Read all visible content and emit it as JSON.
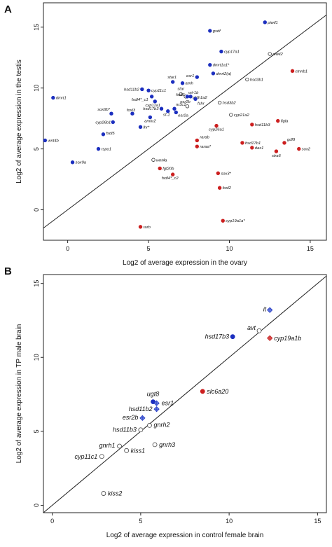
{
  "panels": [
    {
      "letter": "A"
    },
    {
      "letter": "B"
    }
  ],
  "chart_data": [
    {
      "type": "scatter",
      "panel": "A",
      "title": "",
      "xlabel": "Log2 of average expression in the ovary",
      "ylabel": "Log2 of average expression in the testis",
      "xlim": [
        -1.5,
        16
      ],
      "ylim": [
        -2.5,
        17
      ],
      "xticks": [
        0,
        5,
        10,
        15
      ],
      "yticks": [
        0,
        5,
        10,
        15
      ],
      "grid": false,
      "diagonal": true,
      "colors": {
        "testis": "#1c2fbf",
        "ovary": "#cc1f1f",
        "neutral": "#ffffff"
      },
      "points": [
        {
          "label": "piwil1",
          "x": 12.2,
          "y": 15.4,
          "group": "testis"
        },
        {
          "label": "gsdf",
          "x": 8.8,
          "y": 14.7,
          "group": "testis"
        },
        {
          "label": "cyp17a1",
          "x": 9.5,
          "y": 13.0,
          "group": "testis"
        },
        {
          "label": "piwil2",
          "x": 12.5,
          "y": 12.8,
          "group": "neutral"
        },
        {
          "label": "dmrt1a1*",
          "x": 8.8,
          "y": 11.9,
          "group": "testis"
        },
        {
          "label": "ctnnb1",
          "x": 13.9,
          "y": 11.4,
          "group": "ovary"
        },
        {
          "label": "dmrt2(a)",
          "x": 9.0,
          "y": 11.2,
          "group": "testis"
        },
        {
          "label": "esr1",
          "x": 8.0,
          "y": 10.9,
          "group": "testis"
        },
        {
          "label": "hsd3b1",
          "x": 11.1,
          "y": 10.7,
          "group": "neutral"
        },
        {
          "label": "star1",
          "x": 6.5,
          "y": 10.5,
          "group": "testis"
        },
        {
          "label": "amh",
          "x": 7.1,
          "y": 10.4,
          "group": "testis"
        },
        {
          "label": "hsd11b2",
          "x": 4.6,
          "y": 9.9,
          "group": "testis"
        },
        {
          "label": "cyp11c1",
          "x": 5.0,
          "y": 9.8,
          "group": "testis"
        },
        {
          "label": "dmrt1",
          "x": -0.9,
          "y": 9.2,
          "group": "testis"
        },
        {
          "label": "fsdl4*_c1",
          "x": 5.2,
          "y": 9.3,
          "group": "testis"
        },
        {
          "label": "star",
          "x": 7.0,
          "y": 9.5,
          "group": "neutral"
        },
        {
          "label": "wt-1b",
          "x": 7.3,
          "y": 9.3,
          "group": "neutral"
        },
        {
          "label": "fsdl3",
          "x": 7.4,
          "y": 9.3,
          "group": "testis"
        },
        {
          "label": "aldh1a2",
          "x": 7.6,
          "y": 9.3,
          "group": "testis"
        },
        {
          "label": "fshr",
          "x": 7.9,
          "y": 9.1,
          "group": "testis"
        },
        {
          "label": "cyp11a1",
          "x": 5.4,
          "y": 8.9,
          "group": "testis"
        },
        {
          "label": "hsd3b2",
          "x": 9.4,
          "y": 8.8,
          "group": "neutral"
        },
        {
          "label": "esr2b",
          "x": 7.4,
          "y": 8.5,
          "group": "neutral"
        },
        {
          "label": "nr3c1",
          "x": 6.6,
          "y": 8.3,
          "group": "testis"
        },
        {
          "label": "hsd17b3",
          "x": 5.8,
          "y": 8.3,
          "group": "testis"
        },
        {
          "label": "sf-1",
          "x": 6.2,
          "y": 8.1,
          "group": "testis"
        },
        {
          "label": "esr2a",
          "x": 6.7,
          "y": 8.0,
          "group": "testis"
        },
        {
          "label": "sox9b*",
          "x": 2.7,
          "y": 7.9,
          "group": "testis"
        },
        {
          "label": "foxl3",
          "x": 4.0,
          "y": 7.9,
          "group": "testis"
        },
        {
          "label": "amhr2",
          "x": 5.1,
          "y": 7.6,
          "group": "testis"
        },
        {
          "label": "cyp21a2",
          "x": 10.1,
          "y": 7.8,
          "group": "neutral"
        },
        {
          "label": "cyp26b1",
          "x": 2.8,
          "y": 7.2,
          "group": "testis"
        },
        {
          "label": "hsd11b3",
          "x": 11.4,
          "y": 7.0,
          "group": "ovary"
        },
        {
          "label": "cyp26a1",
          "x": 9.2,
          "y": 6.9,
          "group": "ovary"
        },
        {
          "label": "lhr*",
          "x": 4.5,
          "y": 6.8,
          "group": "testis"
        },
        {
          "label": "figla",
          "x": 13.0,
          "y": 7.3,
          "group": "ovary"
        },
        {
          "label": "fsdl5",
          "x": 2.2,
          "y": 6.2,
          "group": "testis"
        },
        {
          "label": "wnt4b",
          "x": -1.4,
          "y": 5.7,
          "group": "testis"
        },
        {
          "label": "rarab",
          "x": 8.0,
          "y": 5.7,
          "group": "ovary"
        },
        {
          "label": "raraa*",
          "x": 8.0,
          "y": 5.2,
          "group": "ovary"
        },
        {
          "label": "hsd17b1",
          "x": 10.8,
          "y": 5.5,
          "group": "ovary"
        },
        {
          "label": "gdf9",
          "x": 13.4,
          "y": 5.5,
          "group": "ovary"
        },
        {
          "label": "dax1",
          "x": 11.4,
          "y": 5.1,
          "group": "ovary"
        },
        {
          "label": "sox2",
          "x": 14.3,
          "y": 5.0,
          "group": "ovary"
        },
        {
          "label": "stra6",
          "x": 12.9,
          "y": 4.8,
          "group": "ovary"
        },
        {
          "label": "rspo1",
          "x": 1.9,
          "y": 5.0,
          "group": "testis"
        },
        {
          "label": "wnt4a",
          "x": 5.3,
          "y": 4.1,
          "group": "neutral"
        },
        {
          "label": "sox9a",
          "x": 0.3,
          "y": 3.9,
          "group": "testis"
        },
        {
          "label": "fgf20b",
          "x": 5.7,
          "y": 3.4,
          "group": "ovary"
        },
        {
          "label": "sox3*",
          "x": 9.3,
          "y": 3.0,
          "group": "ovary"
        },
        {
          "label": "fsdl4*_c2",
          "x": 6.5,
          "y": 2.9,
          "group": "ovary"
        },
        {
          "label": "foxl2",
          "x": 9.4,
          "y": 1.8,
          "group": "ovary"
        },
        {
          "label": "cyp19a1a*",
          "x": 9.6,
          "y": -0.9,
          "group": "ovary"
        },
        {
          "label": "rarb",
          "x": 4.5,
          "y": -1.4,
          "group": "ovary"
        }
      ]
    },
    {
      "type": "scatter",
      "panel": "B",
      "title": "",
      "xlabel": "Log2 of average expression in control female brain",
      "ylabel": "Log2 of average expression in TP male brain",
      "xlim": [
        -0.5,
        15.5
      ],
      "ylim": [
        -0.5,
        15.6
      ],
      "xticks": [
        0,
        5,
        10,
        15
      ],
      "yticks": [
        0,
        5,
        10,
        15
      ],
      "grid": false,
      "diagonal": true,
      "colors": {
        "filled_blue": "#1c2fbf",
        "filled_red": "#cc1f1f",
        "diamond_blue": "#6f84e3",
        "diamond_red": "#e05555",
        "open": "#ffffff"
      },
      "points": [
        {
          "label": "it",
          "x": 12.3,
          "y": 13.2,
          "style": "diamond_blue"
        },
        {
          "label": "avt",
          "x": 11.7,
          "y": 11.8,
          "style": "open"
        },
        {
          "label": "hsd17b3",
          "x": 10.2,
          "y": 11.4,
          "style": "filled_blue"
        },
        {
          "label": "cyp19a1b",
          "x": 12.3,
          "y": 11.3,
          "style": "diamond_red"
        },
        {
          "label": "slc6a20",
          "x": 8.5,
          "y": 7.7,
          "style": "filled_red"
        },
        {
          "label": "ugt8",
          "x": 5.7,
          "y": 7.0,
          "style": "filled_blue"
        },
        {
          "label": "esr1",
          "x": 5.9,
          "y": 6.9,
          "style": "diamond_blue"
        },
        {
          "label": "hsd11b2",
          "x": 5.9,
          "y": 6.5,
          "style": "diamond_blue"
        },
        {
          "label": "esr2b",
          "x": 5.1,
          "y": 5.9,
          "style": "diamond_blue"
        },
        {
          "label": "gnrh2",
          "x": 5.5,
          "y": 5.4,
          "style": "open"
        },
        {
          "label": "hsd11b3",
          "x": 5.0,
          "y": 5.1,
          "style": "open"
        },
        {
          "label": "gnrh1",
          "x": 3.8,
          "y": 4.0,
          "style": "open"
        },
        {
          "label": "gnrh3",
          "x": 5.8,
          "y": 4.1,
          "style": "open"
        },
        {
          "label": "kiss1",
          "x": 4.2,
          "y": 3.7,
          "style": "open"
        },
        {
          "label": "cyp11c1",
          "x": 2.8,
          "y": 3.3,
          "style": "open"
        },
        {
          "label": "kiss2",
          "x": 2.9,
          "y": 0.8,
          "style": "open"
        }
      ]
    }
  ]
}
